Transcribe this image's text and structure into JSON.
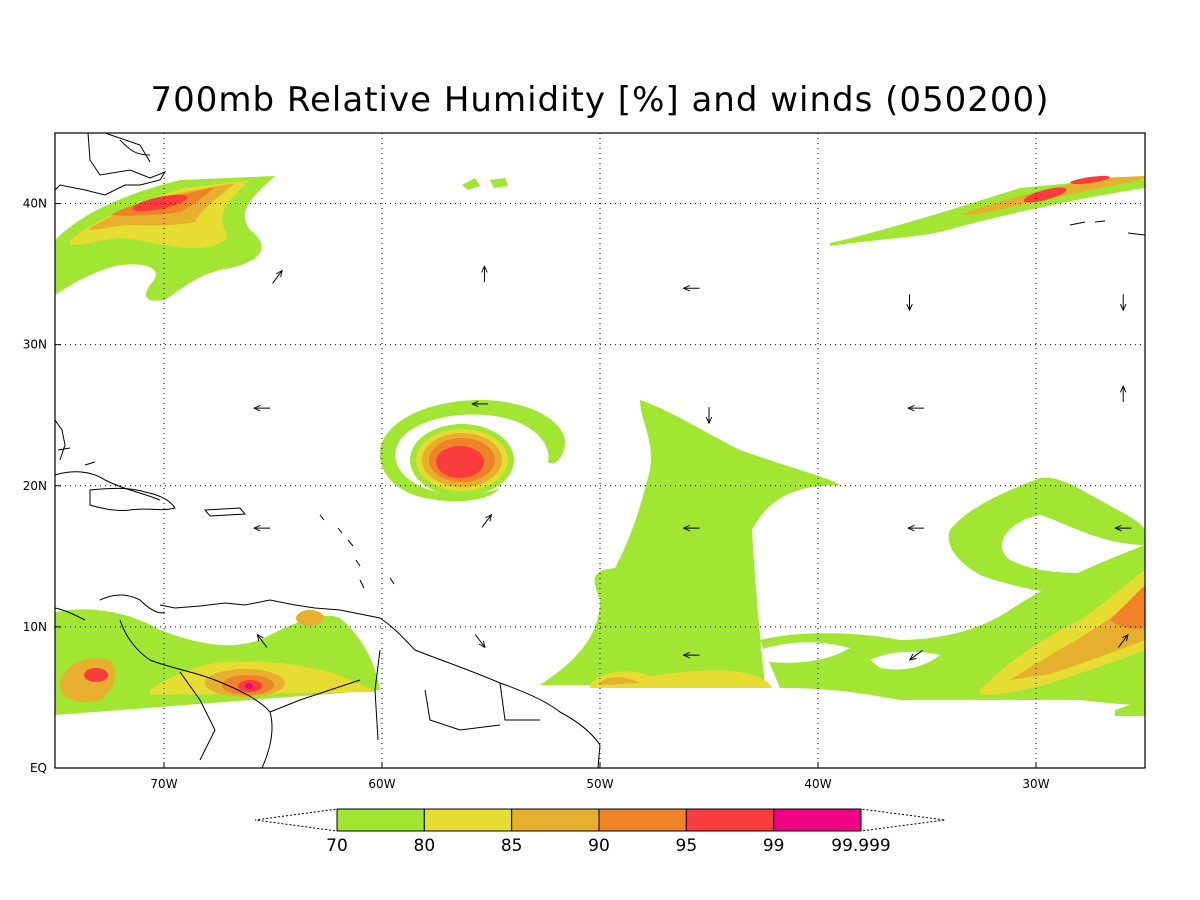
{
  "title": "700mb Relative Humidity [%] and winds (050200)",
  "map": {
    "lon_range": [
      -75,
      -25
    ],
    "lat_range": [
      0,
      45
    ],
    "lon_ticks": [
      {
        "value": -70,
        "label": "70W"
      },
      {
        "value": -60,
        "label": "60W"
      },
      {
        "value": -50,
        "label": "50W"
      },
      {
        "value": -40,
        "label": "40W"
      },
      {
        "value": -30,
        "label": "30W"
      }
    ],
    "lat_ticks": [
      {
        "value": 0,
        "label": "EQ"
      },
      {
        "value": 10,
        "label": "10N"
      },
      {
        "value": 20,
        "label": "20N"
      },
      {
        "value": 30,
        "label": "30N"
      },
      {
        "value": 40,
        "label": "40N"
      }
    ],
    "grid": "dotted"
  },
  "colorbar": {
    "levels": [
      "70",
      "80",
      "85",
      "90",
      "95",
      "99",
      "99.999"
    ],
    "colors": [
      "#a0e632",
      "#e6dc32",
      "#e6af2d",
      "#f08228",
      "#fa3c3c",
      "#f00082"
    ]
  },
  "chart_data": {
    "type": "heatmap",
    "variable": "700mb Relative Humidity",
    "units": "%",
    "contour_levels": [
      70,
      80,
      85,
      90,
      95,
      99,
      99.999
    ],
    "features": [
      {
        "region": "off US east coast",
        "center": [
          -67,
          40
        ],
        "max_level": 95
      },
      {
        "region": "northeast Atlantic",
        "center": [
          -30,
          41
        ],
        "max_level": 95
      },
      {
        "region": "cyclone",
        "center": [
          -56.5,
          21.5
        ],
        "max_level": 95
      },
      {
        "region": "central Atlantic band",
        "center": [
          -46,
          15
        ],
        "max_level": 80
      },
      {
        "region": "eastern Atlantic",
        "center": [
          -30,
          12
        ],
        "max_level": 90
      },
      {
        "region": "northern South America",
        "center": [
          -66,
          6
        ],
        "max_level": 99.999
      }
    ],
    "wind_vectors": [
      {
        "lon": -64.8,
        "lat": 34.8,
        "dir": "NE"
      },
      {
        "lon": -55.3,
        "lat": 35,
        "dir": "N"
      },
      {
        "lon": -45.8,
        "lat": 34,
        "dir": "W"
      },
      {
        "lon": -35.8,
        "lat": 33,
        "dir": "S"
      },
      {
        "lon": -26,
        "lat": 33,
        "dir": "S"
      },
      {
        "lon": -65.5,
        "lat": 25.5,
        "dir": "W"
      },
      {
        "lon": -55.5,
        "lat": 25.8,
        "dir": "W"
      },
      {
        "lon": -45,
        "lat": 25,
        "dir": "S"
      },
      {
        "lon": -35.5,
        "lat": 25.5,
        "dir": "W"
      },
      {
        "lon": -26,
        "lat": 26.5,
        "dir": "N"
      },
      {
        "lon": -65.5,
        "lat": 17,
        "dir": "W"
      },
      {
        "lon": -55.2,
        "lat": 17.5,
        "dir": "NE"
      },
      {
        "lon": -45.8,
        "lat": 17,
        "dir": "W"
      },
      {
        "lon": -35.5,
        "lat": 17,
        "dir": "W"
      },
      {
        "lon": -26,
        "lat": 17,
        "dir": "W"
      },
      {
        "lon": -65.5,
        "lat": 9,
        "dir": "NW"
      },
      {
        "lon": -55.5,
        "lat": 9,
        "dir": "SE"
      },
      {
        "lon": -45.8,
        "lat": 8,
        "dir": "W"
      },
      {
        "lon": -35.5,
        "lat": 8,
        "dir": "SW"
      },
      {
        "lon": -26,
        "lat": 9,
        "dir": "NE"
      }
    ]
  }
}
